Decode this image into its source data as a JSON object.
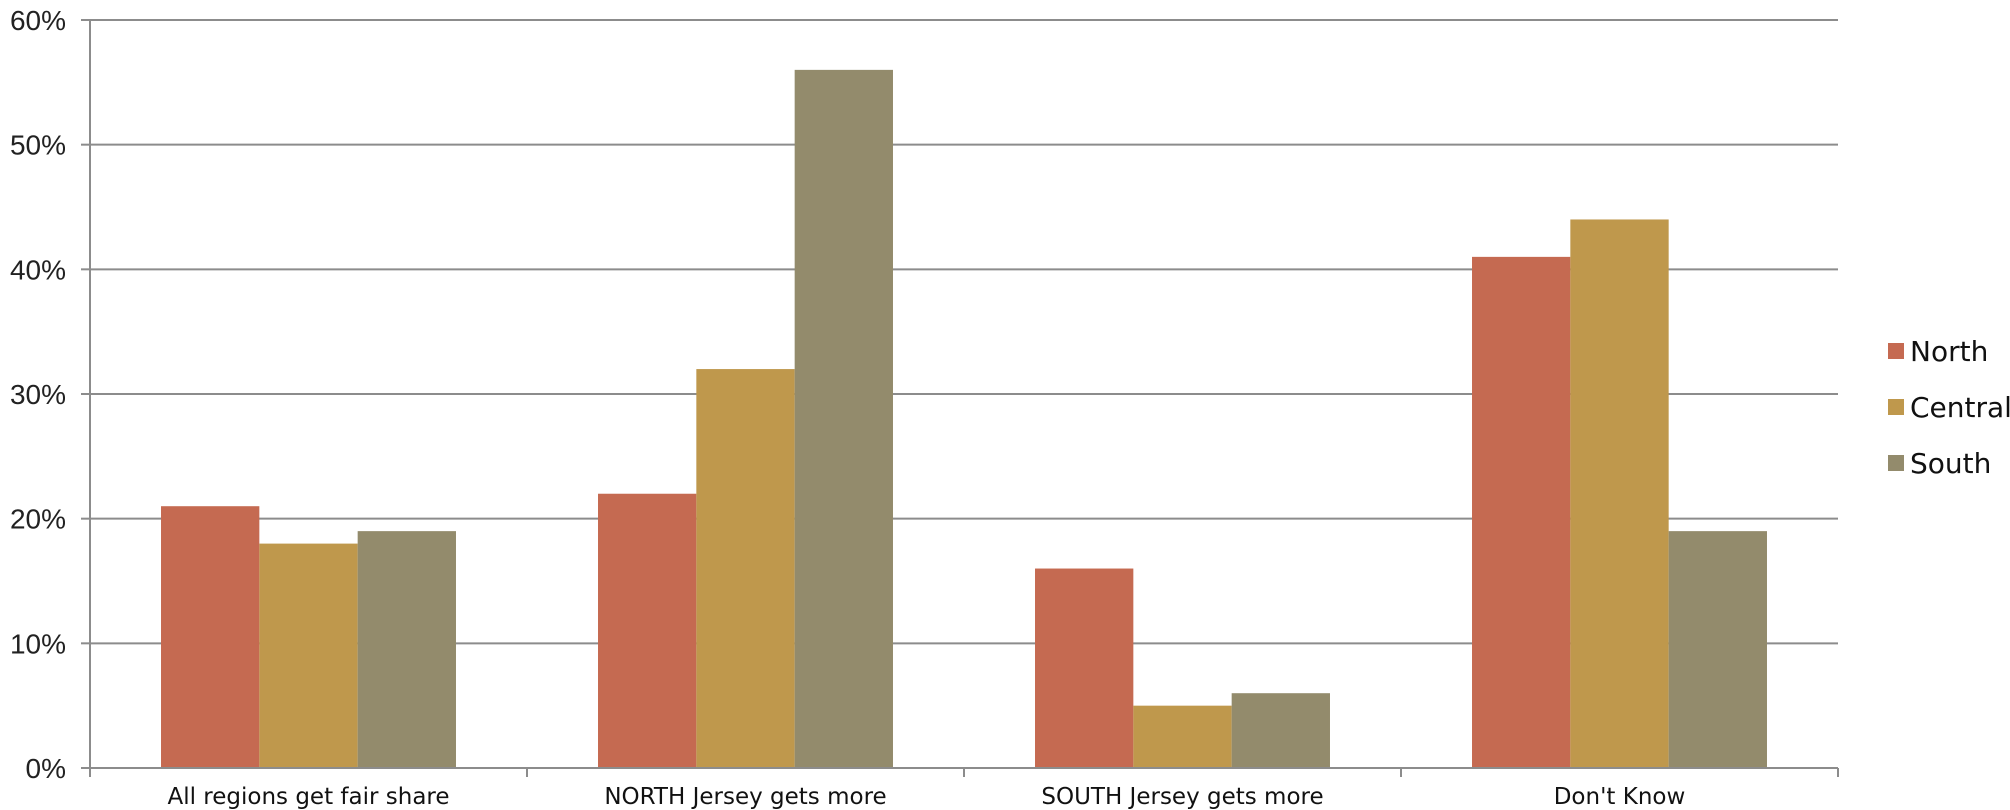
{
  "chart_data": {
    "type": "bar",
    "title": "",
    "xlabel": "",
    "ylabel": "",
    "ylim": [
      0,
      60
    ],
    "y_ticks": [
      0,
      10,
      20,
      30,
      40,
      50,
      60
    ],
    "y_tick_suffix": "%",
    "grid": true,
    "legend_position": "right",
    "categories": [
      "All regions get fair share",
      "NORTH Jersey gets more",
      "SOUTH Jersey gets more",
      "Don't Know"
    ],
    "series": [
      {
        "name": "North",
        "color": "#c56a51",
        "values": [
          21,
          22,
          16,
          41
        ]
      },
      {
        "name": "Central",
        "color": "#bf984c",
        "values": [
          18,
          32,
          5,
          44
        ]
      },
      {
        "name": "South",
        "color": "#938b6c",
        "values": [
          19,
          56,
          6,
          19
        ]
      }
    ],
    "colors": {
      "grid": "#8c8c8c",
      "axis": "#8c8c8c"
    }
  }
}
